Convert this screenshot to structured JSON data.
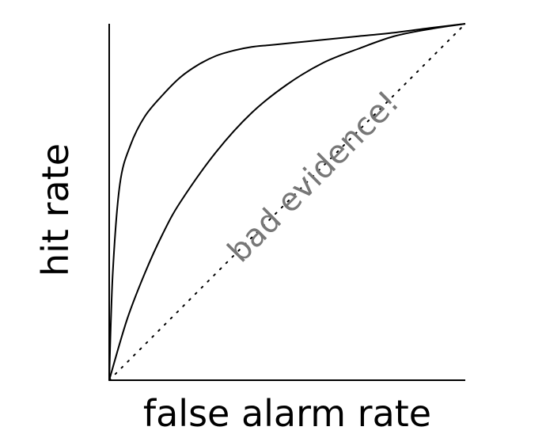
{
  "chart_data": {
    "type": "line",
    "title": "",
    "xlabel": "false alarm rate",
    "ylabel": "hit rate",
    "xlim": [
      0,
      1
    ],
    "ylim": [
      0,
      1
    ],
    "grid": false,
    "legend": "none",
    "ticks": "none",
    "series": [
      {
        "style": "solid",
        "color": "#000000",
        "x": [
          0,
          0.01,
          0.03,
          0.06,
          0.1,
          0.15,
          0.2,
          0.25,
          0.3,
          0.35,
          0.4,
          0.45,
          0.5,
          0.6,
          0.7,
          0.8,
          0.9,
          1.0
        ],
        "y": [
          0,
          0.3,
          0.55,
          0.66,
          0.74,
          0.8,
          0.85,
          0.885,
          0.91,
          0.925,
          0.935,
          0.94,
          0.945,
          0.955,
          0.965,
          0.975,
          0.988,
          1.0
        ]
      },
      {
        "style": "solid",
        "color": "#000000",
        "x": [
          0,
          0.05,
          0.1,
          0.15,
          0.2,
          0.3,
          0.4,
          0.5,
          0.6,
          0.7,
          0.8,
          0.9,
          1.0
        ],
        "y": [
          0,
          0.17,
          0.3,
          0.41,
          0.5,
          0.64,
          0.75,
          0.83,
          0.89,
          0.93,
          0.965,
          0.985,
          1.0
        ]
      },
      {
        "style": "dotted",
        "color": "#000000",
        "x": [
          0,
          1
        ],
        "y": [
          0,
          1
        ]
      }
    ],
    "annotations": [
      {
        "text": "bad evidence!",
        "x": 0.55,
        "y": 0.55,
        "color": "#777777"
      }
    ]
  }
}
